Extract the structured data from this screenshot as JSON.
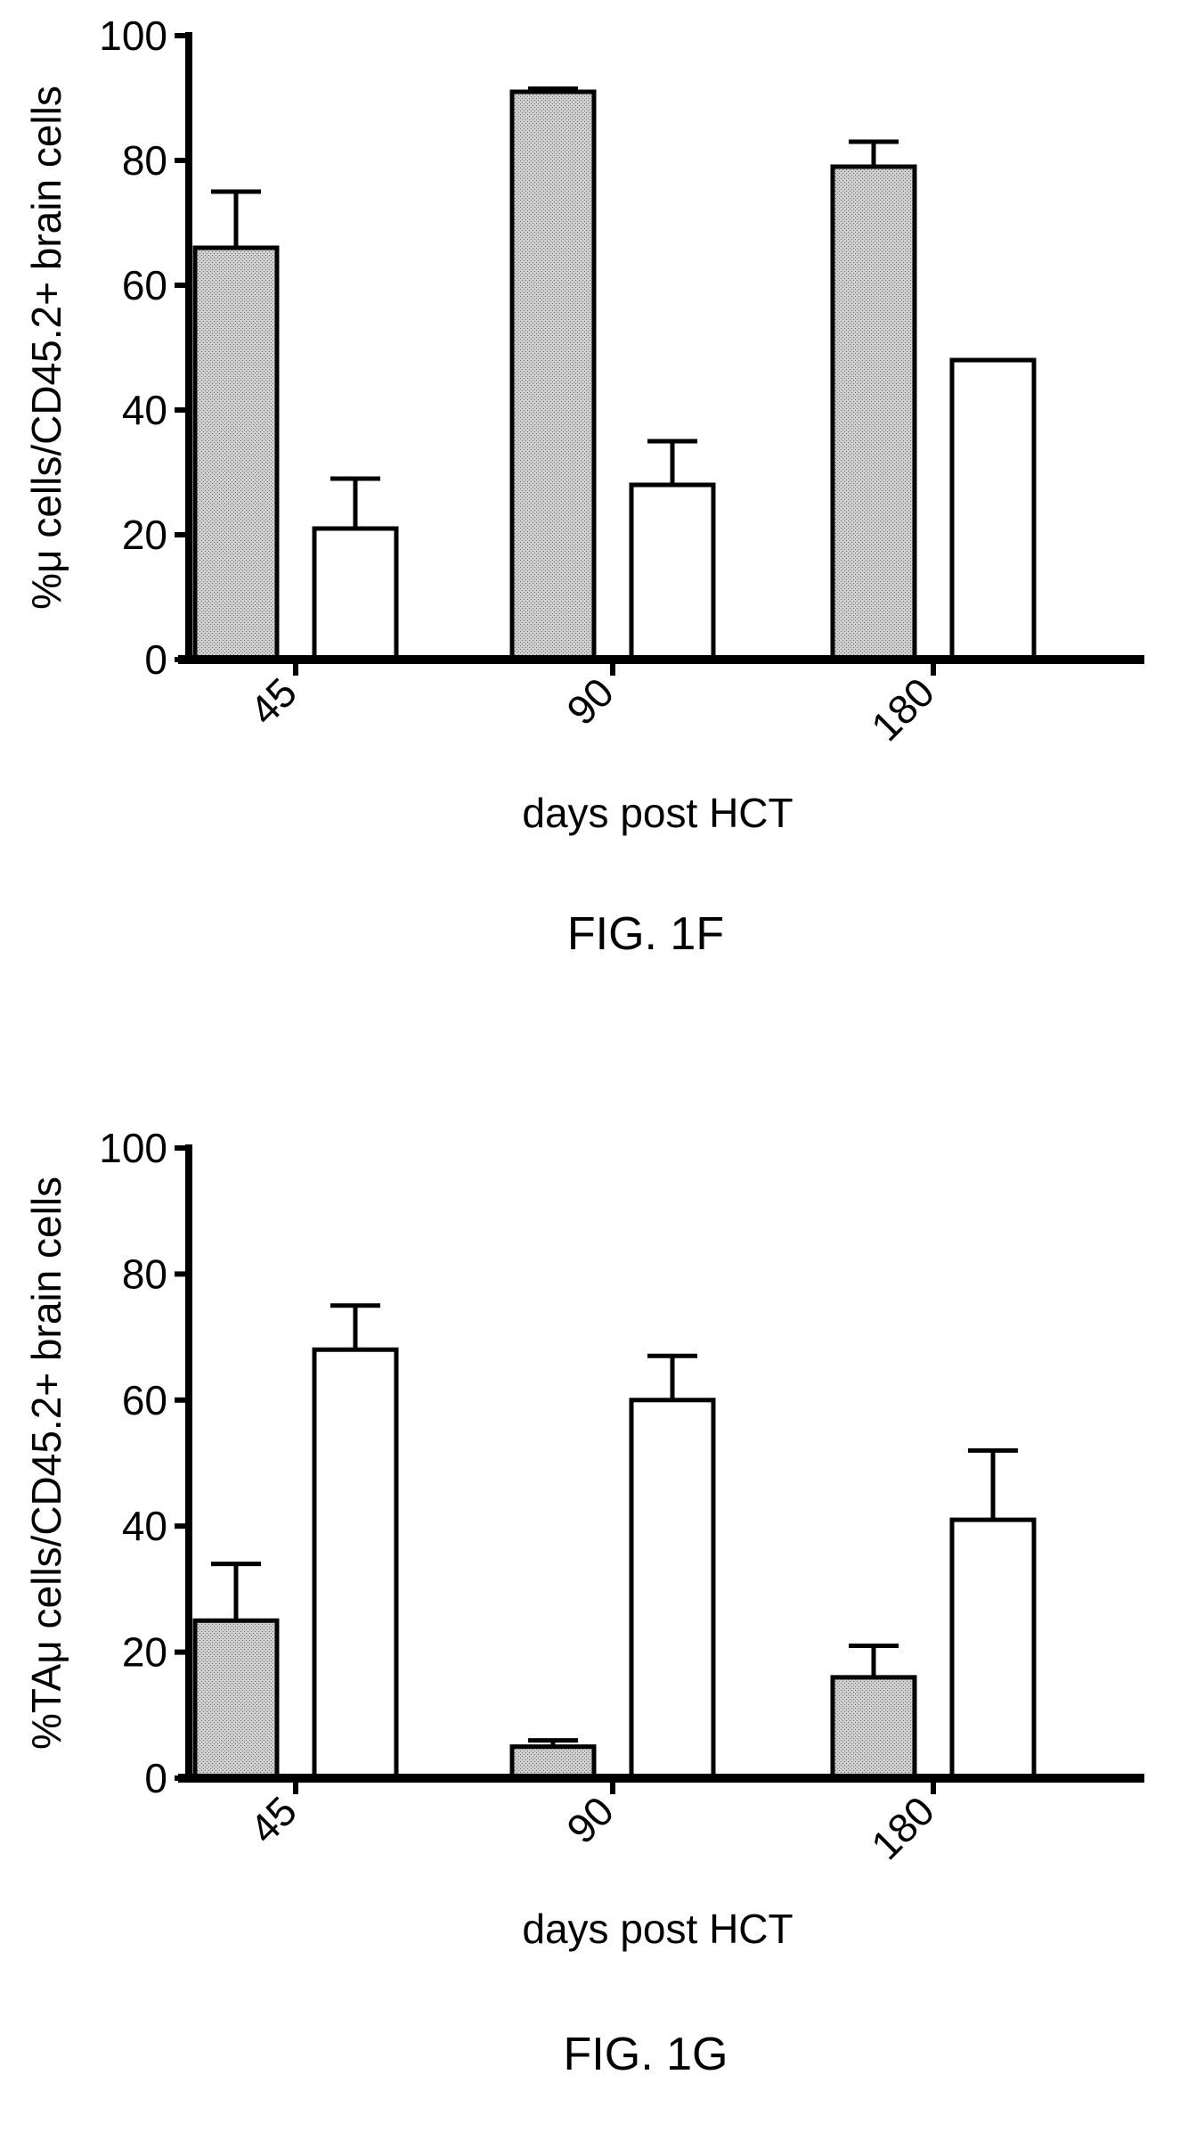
{
  "colors": {
    "shaded_fill": "#c8c8c8",
    "open_fill": "#ffffff",
    "stroke": "#000000"
  },
  "chart_data": [
    {
      "type": "bar",
      "caption": "FIG. 1F",
      "categories": [
        "45",
        "90",
        "180"
      ],
      "series": [
        {
          "values": [
            66,
            91,
            79
          ],
          "errors": [
            9,
            0.5,
            4
          ],
          "fill": "shaded"
        },
        {
          "values": [
            21,
            28,
            48
          ],
          "errors": [
            8,
            7,
            0
          ],
          "fill": "open"
        }
      ],
      "xlabel": "days post HCT",
      "ylabel": "%μ cells/CD45.2+ brain cells",
      "ylim": [
        0,
        100
      ],
      "yticks": [
        "0",
        "20",
        "40",
        "60",
        "80",
        "100"
      ],
      "grid": false,
      "legend": "none"
    },
    {
      "type": "bar",
      "caption": "FIG. 1G",
      "categories": [
        "45",
        "90",
        "180"
      ],
      "series": [
        {
          "values": [
            25,
            5,
            16
          ],
          "errors": [
            9,
            1,
            5
          ],
          "fill": "shaded"
        },
        {
          "values": [
            68,
            60,
            41
          ],
          "errors": [
            7,
            7,
            11
          ],
          "fill": "open"
        }
      ],
      "xlabel": "days post HCT",
      "ylabel": "%TAμ cells/CD45.2+ brain cells",
      "ylim": [
        0,
        100
      ],
      "yticks": [
        "0",
        "20",
        "40",
        "60",
        "80",
        "100"
      ],
      "grid": false,
      "legend": "none"
    }
  ]
}
